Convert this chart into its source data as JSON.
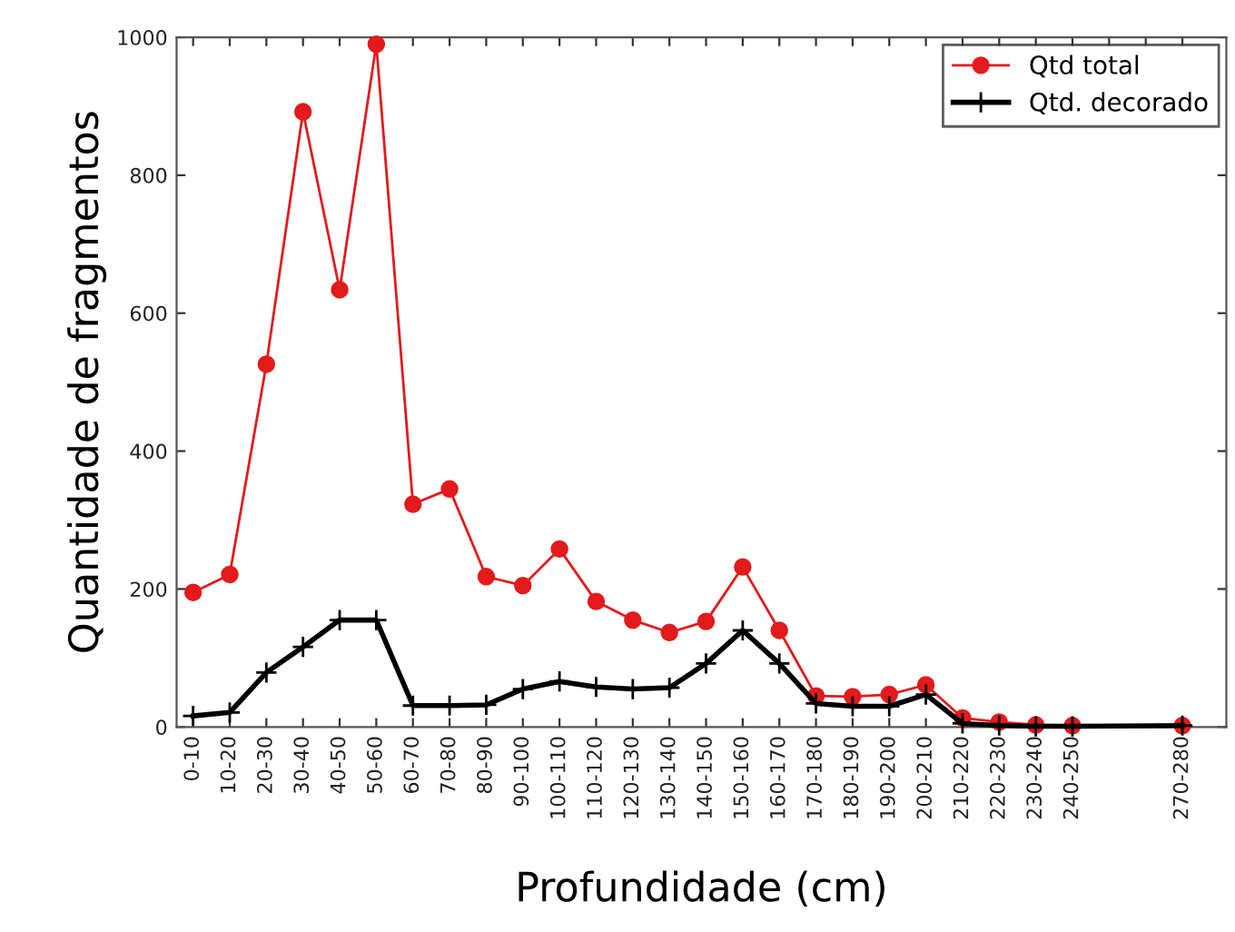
{
  "chart_data": {
    "type": "line",
    "xlabel": "Profundidade (cm)",
    "ylabel": "Quantidade de fragmentos",
    "categories": [
      "0-10",
      "10-20",
      "20-30",
      "30-40",
      "40-50",
      "50-60",
      "60-70",
      "70-80",
      "80-90",
      "90-100",
      "100-110",
      "110-120",
      "120-130",
      "130-140",
      "140-150",
      "150-160",
      "160-170",
      "170-180",
      "180-190",
      "190-200",
      "200-210",
      "210-220",
      "220-230",
      "230-240",
      "240-250",
      null,
      null,
      "270-280"
    ],
    "ylim": [
      0,
      1000
    ],
    "yticks": [
      0,
      200,
      400,
      600,
      800,
      1000
    ],
    "grid": false,
    "legend": "top right",
    "series": [
      {
        "name": "Qtd total",
        "color": "#e31a1c",
        "marker": "circle",
        "values": [
          195,
          221,
          526,
          892,
          634,
          990,
          323,
          345,
          218,
          205,
          258,
          182,
          155,
          137,
          153,
          232,
          140,
          45,
          44,
          47,
          61,
          13,
          7,
          3,
          2,
          null,
          null,
          2
        ]
      },
      {
        "name": "Qtd. decorado",
        "color": "#000000",
        "marker": "cross",
        "values": [
          16,
          21,
          79,
          116,
          155,
          155,
          31,
          31,
          32,
          55,
          66,
          58,
          55,
          57,
          92,
          140,
          92,
          34,
          30,
          30,
          47,
          5,
          2,
          1,
          1,
          null,
          null,
          2
        ]
      }
    ]
  }
}
